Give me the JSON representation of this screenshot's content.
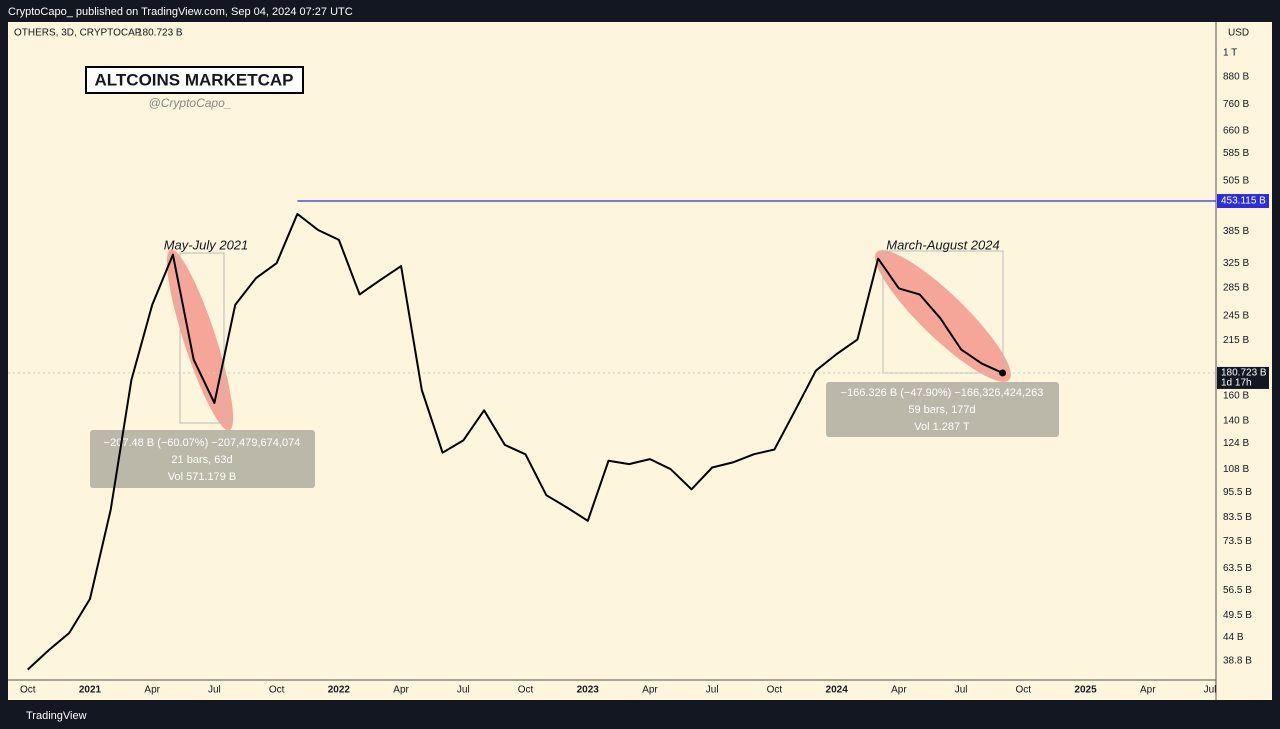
{
  "header": {
    "published": "CryptoCapo_ published on TradingView.com, Sep 04, 2024 07:27 UTC",
    "symbol": "OTHERS, 3D, CRYPTOCAP"
  },
  "chart_data": {
    "type": "line",
    "title": "ALTCOINS MARKETCAP",
    "subtitle": "@CryptoCapo_",
    "currency": "USD",
    "log_scale": true,
    "grid": false,
    "color": "#000000",
    "x": [
      "2020-10",
      "2020-11",
      "2020-12",
      "2021-01",
      "2021-02",
      "2021-03",
      "2021-04",
      "2021-05",
      "2021-06",
      "2021-07",
      "2021-08",
      "2021-09",
      "2021-10",
      "2021-11",
      "2021-12",
      "2022-01",
      "2022-02",
      "2022-03",
      "2022-04",
      "2022-05",
      "2022-06",
      "2022-07",
      "2022-08",
      "2022-09",
      "2022-10",
      "2022-11",
      "2022-12",
      "2023-01",
      "2023-02",
      "2023-03",
      "2023-04",
      "2023-05",
      "2023-06",
      "2023-07",
      "2023-08",
      "2023-09",
      "2023-10",
      "2023-11",
      "2023-12",
      "2024-01",
      "2024-02",
      "2024-03",
      "2024-04",
      "2024-05",
      "2024-06",
      "2024-07",
      "2024-08",
      "2024-09"
    ],
    "values": [
      37,
      41,
      45,
      54,
      87,
      174,
      260,
      340,
      194,
      154,
      260,
      300,
      325,
      423,
      388,
      368,
      275,
      297,
      320,
      165,
      118,
      126,
      148,
      123,
      117,
      94,
      88,
      82,
      113,
      111,
      114,
      108,
      97,
      109,
      112,
      117,
      120,
      148,
      183,
      200,
      216,
      333,
      284,
      275,
      242,
      205,
      190,
      180.723
    ],
    "xlim": [
      "2020-09",
      "2025-07"
    ],
    "xticks": [
      {
        "value": "2020-10",
        "label": "Oct"
      },
      {
        "value": "2021-01",
        "label": "2021"
      },
      {
        "value": "2021-04",
        "label": "Apr"
      },
      {
        "value": "2021-07",
        "label": "Jul"
      },
      {
        "value": "2021-10",
        "label": "Oct"
      },
      {
        "value": "2022-01",
        "label": "2022"
      },
      {
        "value": "2022-04",
        "label": "Apr"
      },
      {
        "value": "2022-07",
        "label": "Jul"
      },
      {
        "value": "2022-10",
        "label": "Oct"
      },
      {
        "value": "2023-01",
        "label": "2023"
      },
      {
        "value": "2023-04",
        "label": "Apr"
      },
      {
        "value": "2023-07",
        "label": "Jul"
      },
      {
        "value": "2023-10",
        "label": "Oct"
      },
      {
        "value": "2024-01",
        "label": "2024"
      },
      {
        "value": "2024-04",
        "label": "Apr"
      },
      {
        "value": "2024-07",
        "label": "Jul"
      },
      {
        "value": "2024-10",
        "label": "Oct"
      },
      {
        "value": "2025-01",
        "label": "2025"
      },
      {
        "value": "2025-04",
        "label": "Apr"
      },
      {
        "value": "2025-07",
        "label": "Jul"
      }
    ],
    "ylim": [
      35,
      1180
    ],
    "yticks": [
      {
        "value": 1000,
        "label": "1 T"
      },
      {
        "value": 880,
        "label": "880 B"
      },
      {
        "value": 760,
        "label": "760 B"
      },
      {
        "value": 660,
        "label": "660 B"
      },
      {
        "value": 585,
        "label": "585 B"
      },
      {
        "value": 505,
        "label": "505 B"
      },
      {
        "value": 385,
        "label": "385 B"
      },
      {
        "value": 325,
        "label": "325 B"
      },
      {
        "value": 285,
        "label": "285 B"
      },
      {
        "value": 245,
        "label": "245 B"
      },
      {
        "value": 215,
        "label": "215 B"
      },
      {
        "value": 160,
        "label": "160 B"
      },
      {
        "value": 140,
        "label": "140 B"
      },
      {
        "value": 124,
        "label": "124 B"
      },
      {
        "value": 108,
        "label": "108 B"
      },
      {
        "value": 95.5,
        "label": "95.5 B"
      },
      {
        "value": 83.5,
        "label": "83.5 B"
      },
      {
        "value": 73.5,
        "label": "73.5 B"
      },
      {
        "value": 63.5,
        "label": "63.5 B"
      },
      {
        "value": 56.5,
        "label": "56.5 B"
      },
      {
        "value": 49.5,
        "label": "49.5 B"
      },
      {
        "value": 44,
        "label": "44 B"
      },
      {
        "value": 38.8,
        "label": "38.8 B"
      }
    ],
    "hline": {
      "value": 453.115,
      "label": "453.115 B",
      "color": "#2e2ed6"
    },
    "last_price": {
      "value": 180.723,
      "label": "180.723 B",
      "countdown": "1d 17h"
    },
    "annotations": [
      {
        "label": "May-July 2021",
        "lines": [
          "−207.48 B (−60.07%) −207,479,674,074",
          "21 bars, 63d",
          "Vol 571.179 B"
        ]
      },
      {
        "label": "March-August 2024",
        "lines": [
          "−166.326 B (−47.90%) −166,326,424,263",
          "59 bars, 177d",
          "Vol 1.287 T"
        ]
      }
    ]
  },
  "footer": {
    "brand": "TradingView"
  }
}
